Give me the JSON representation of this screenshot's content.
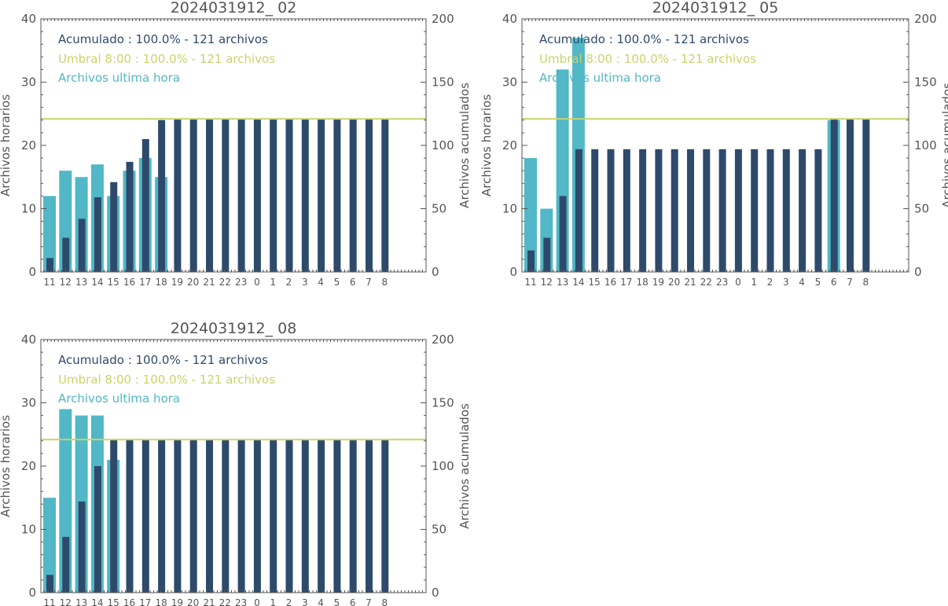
{
  "colors": {
    "accumulated": "#2e4a6b",
    "threshold": "#c8d46a",
    "hourly": "#52b7c6",
    "axis": "#555555"
  },
  "chart_data": [
    {
      "type": "bar",
      "title": "2024031912_ 02",
      "categories": [
        "11",
        "12",
        "13",
        "14",
        "15",
        "16",
        "17",
        "18",
        "19",
        "20",
        "21",
        "22",
        "23",
        "0",
        "1",
        "2",
        "3",
        "4",
        "5",
        "6",
        "7",
        "8"
      ],
      "ylabel_left": "Archivos horarios",
      "ylabel_right": "Archivos acumulados",
      "ylim_left": [
        0,
        40
      ],
      "ylim_right": [
        0,
        200
      ],
      "yticks_left": [
        "0",
        "10",
        "20",
        "30",
        "40"
      ],
      "yticks_right": [
        "0",
        "50",
        "100",
        "150",
        "200"
      ],
      "legend": {
        "accumulated": "Acumulado : 100.0% - 121 archivos",
        "threshold": "Umbral 8:00 : 100.0% - 121 archivos",
        "hourly": "Archivos ultima hora"
      },
      "threshold_value": 121,
      "series": [
        {
          "name": "Archivos ultima hora",
          "axis": "left",
          "values": [
            12,
            16,
            15,
            17,
            12,
            16,
            18,
            15,
            0,
            0,
            0,
            0,
            0,
            0,
            0,
            0,
            0,
            0,
            0,
            0,
            0,
            0
          ]
        },
        {
          "name": "Acumulado",
          "axis": "right",
          "values": [
            11,
            27,
            42,
            59,
            71,
            87,
            105,
            120,
            121,
            121,
            121,
            121,
            121,
            121,
            121,
            121,
            121,
            121,
            121,
            121,
            121,
            121
          ]
        }
      ]
    },
    {
      "type": "bar",
      "title": "2024031912_ 05",
      "categories": [
        "11",
        "12",
        "13",
        "14",
        "15",
        "16",
        "17",
        "18",
        "19",
        "20",
        "21",
        "22",
        "23",
        "0",
        "1",
        "2",
        "3",
        "4",
        "5",
        "6",
        "7",
        "8"
      ],
      "ylabel_left": "Archivos horarios",
      "ylabel_right": "Archivos acumulados",
      "ylim_left": [
        0,
        40
      ],
      "ylim_right": [
        0,
        200
      ],
      "yticks_left": [
        "0",
        "10",
        "20",
        "30",
        "40"
      ],
      "yticks_right": [
        "0",
        "50",
        "100",
        "150",
        "200"
      ],
      "legend": {
        "accumulated": "Acumulado : 100.0% - 121 archivos",
        "threshold": "Umbral 8:00 : 100.0% - 121 archivos",
        "hourly": "Archivos ultima hora"
      },
      "threshold_value": 121,
      "series": [
        {
          "name": "Archivos ultima hora",
          "axis": "left",
          "values": [
            18,
            10,
            32,
            37,
            0,
            0,
            0,
            0,
            0,
            0,
            0,
            0,
            0,
            0,
            0,
            0,
            0,
            0,
            0,
            24,
            0,
            0
          ]
        },
        {
          "name": "Acumulado",
          "axis": "right",
          "values": [
            17,
            27,
            60,
            97,
            97,
            97,
            97,
            97,
            97,
            97,
            97,
            97,
            97,
            97,
            97,
            97,
            97,
            97,
            97,
            121,
            121,
            121
          ]
        }
      ]
    },
    {
      "type": "bar",
      "title": "2024031912_ 08",
      "categories": [
        "11",
        "12",
        "13",
        "14",
        "15",
        "16",
        "17",
        "18",
        "19",
        "20",
        "21",
        "22",
        "23",
        "0",
        "1",
        "2",
        "3",
        "4",
        "5",
        "6",
        "7",
        "8"
      ],
      "ylabel_left": "Archivos horarios",
      "ylabel_right": "Archivos acumulados",
      "ylim_left": [
        0,
        40
      ],
      "ylim_right": [
        0,
        200
      ],
      "yticks_left": [
        "0",
        "10",
        "20",
        "30",
        "40"
      ],
      "yticks_right": [
        "0",
        "50",
        "100",
        "150",
        "200"
      ],
      "legend": {
        "accumulated": "Acumulado : 100.0% - 121 archivos",
        "threshold": "Umbral 8:00 : 100.0% - 121 archivos",
        "hourly": "Archivos ultima hora"
      },
      "threshold_value": 121,
      "series": [
        {
          "name": "Archivos ultima hora",
          "axis": "left",
          "values": [
            15,
            29,
            28,
            28,
            21,
            0,
            0,
            0,
            0,
            0,
            0,
            0,
            0,
            0,
            0,
            0,
            0,
            0,
            0,
            0,
            0,
            0
          ]
        },
        {
          "name": "Acumulado",
          "axis": "right",
          "values": [
            14,
            44,
            72,
            100,
            121,
            121,
            121,
            121,
            121,
            121,
            121,
            121,
            121,
            121,
            121,
            121,
            121,
            121,
            121,
            121,
            121,
            121
          ]
        }
      ]
    }
  ]
}
